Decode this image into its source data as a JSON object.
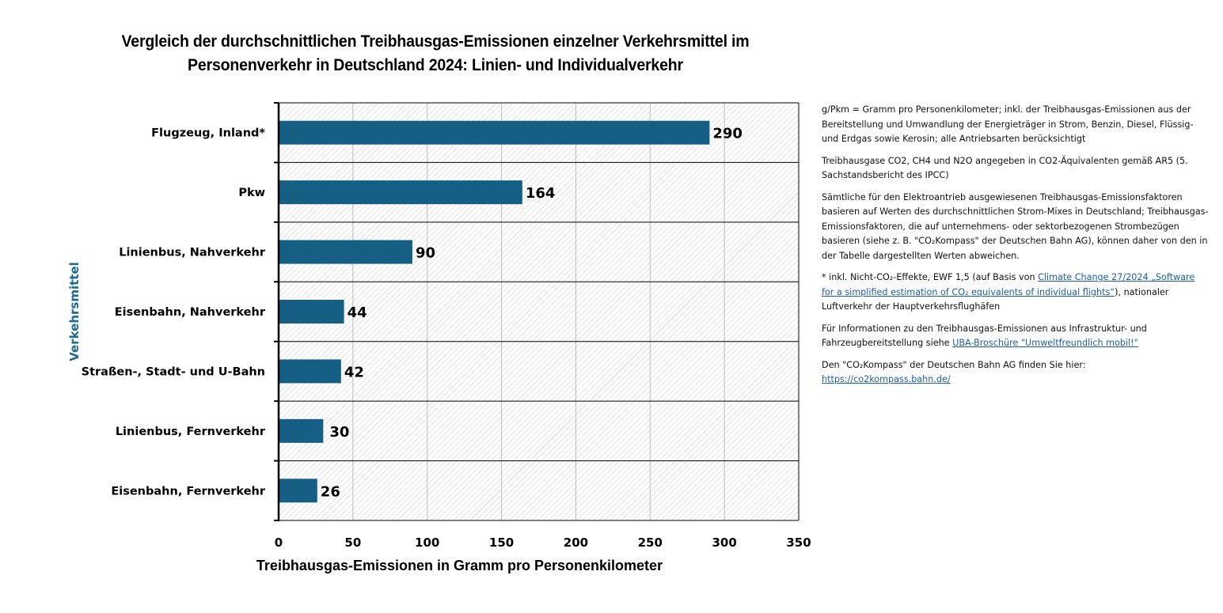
{
  "title": {
    "line1": "Vergleich der durchschnittlichen Treibhausgas-Emissionen einzelner Verkehrsmittel im",
    "line2": "Personenverkehr in Deutschland 2024: Linien- und Individualverkehr"
  },
  "colors": {
    "bar": "#155e84",
    "axis_label": "#1a6a93",
    "link": "#1a5ea8",
    "grid": "#bbbbbb",
    "hatch": "#d4d4d4"
  },
  "chart_data": {
    "type": "bar",
    "orientation": "horizontal",
    "title": "Vergleich der durchschnittlichen Treibhausgas-Emissionen einzelner Verkehrsmittel im Personenverkehr in Deutschland 2024: Linien- und Individualverkehr",
    "categories": [
      "Flugzeug, Inland*",
      "Pkw",
      "Linienbus, Nahverkehr",
      "Eisenbahn, Nahverkehr",
      "Straßen-, Stadt- und U-Bahn",
      "Linienbus, Fernverkehr",
      "Eisenbahn, Fernverkehr"
    ],
    "values": [
      290,
      164,
      90,
      44,
      42,
      30,
      26
    ],
    "xlabel": "Treibhausgas-Emissionen in Gramm pro Personenkilometer",
    "ylabel": "Verkehrsmittel",
    "xlim": [
      0,
      350
    ],
    "xticks": [
      0,
      50,
      100,
      150,
      200,
      250,
      300,
      350
    ],
    "grid": true,
    "legend": "none"
  },
  "notes": {
    "p1": "g/Pkm = Gramm pro Personenkilometer; inkl. der Treibhausgas-Emissionen aus der Bereitstellung und Umwandlung der Energieträger in Strom, Benzin, Diesel, Flüssig- und Erdgas sowie Kerosin; alle Antriebsarten berücksichtigt",
    "p2": "Treibhausgase CO2, CH4 und N2O angegeben in CO2-Äquivalenten gemäß AR5 (5. Sachstandsbericht des IPCC)",
    "p3": "Sämtliche für den Elektroantrieb ausgewiesenen Treibhausgas-Emissionsfaktoren basieren auf Werten des durchschnittlichen Strom-Mixes in Deutschland; Treibhausgas-Emissionsfaktoren, die auf unternehmens- oder sektorbezogenen Strombezügen basieren (siehe z. B. \"CO₂Kompass\" der Deutschen Bahn AG), können daher von den in der Tabelle dargestellten Werten abweichen.",
    "p4_prefix": "* inkl. Nicht-CO₂-Effekte, EWF 1,5 (auf Basis von ",
    "p4_link": "Climate Change 27/2024 „Software for a simplified estimation of CO₂ equivalents of individual flights“",
    "p4_suffix": "), nationaler Luftverkehr der Hauptverkehrsflughäfen",
    "p5_prefix": "Für Informationen zu den Treibhausgas-Emissionen aus Infrastruktur- und Fahrzeugbereitstellung siehe ",
    "p5_link": "UBA-Broschüre \"Umweltfreundlich mobil!\"",
    "p6_prefix": "Den \"CO₂Kompass\" der Deutschen Bahn AG finden Sie hier:",
    "p6_link": "https://co2kompass.bahn.de/"
  }
}
